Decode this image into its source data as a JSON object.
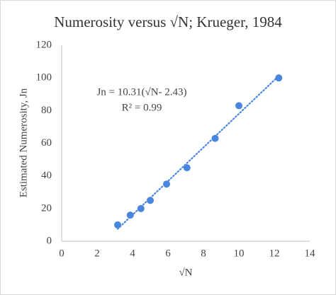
{
  "chart_data": {
    "type": "scatter",
    "title": "Numerosity  versus √N; Krueger, 1984",
    "x_label": "√N",
    "y_label": "Estimated Numerosity, Jn",
    "series": [
      {
        "name": "Krueger, 1984",
        "color": "#4a86de",
        "x": [
          3.16,
          3.87,
          4.47,
          5.0,
          5.92,
          7.07,
          8.66,
          10.0,
          12.25
        ],
        "values": [
          10,
          16,
          20,
          25,
          35,
          45,
          63,
          83,
          100
        ]
      }
    ],
    "trendline": {
      "slope": 10.31,
      "x_offset": 2.43,
      "color": "#4a86de"
    },
    "annotations": [
      "Jn = 10.31(√N- 2.43)",
      "R² = 0.99"
    ],
    "xlim": [
      0,
      14
    ],
    "xticks": [
      0,
      2,
      4,
      6,
      8,
      10,
      12,
      14
    ],
    "ylim": [
      0,
      120
    ],
    "yticks": [
      0,
      20,
      40,
      60,
      80,
      100,
      120
    ],
    "grid": false
  }
}
